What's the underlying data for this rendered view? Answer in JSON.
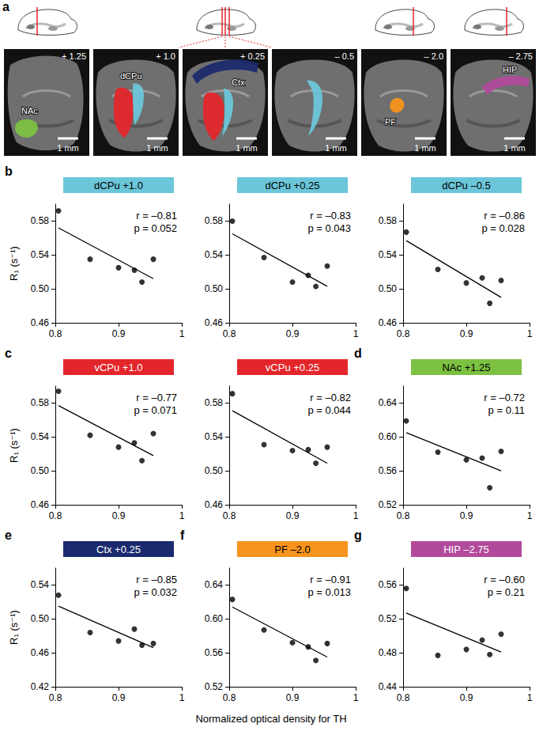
{
  "panel_a": {
    "letter": "a",
    "sections": [
      {
        "coordinate": "+ 1.25",
        "scale_bar": "1 mm",
        "regions": [
          {
            "label": "NAc",
            "color": "#7cc142"
          }
        ]
      },
      {
        "coordinate": "+ 1.0",
        "scale_bar": "1 mm",
        "regions": [
          {
            "color": "#e3262b"
          },
          {
            "label": "dCPu",
            "color": "#6cc6d9"
          }
        ]
      },
      {
        "coordinate": "+ 0.25",
        "scale_bar": "1 mm",
        "regions": [
          {
            "label": "Ctx",
            "color": "#1b2a6e"
          },
          {
            "color": "#e3262b"
          },
          {
            "color": "#6cc6d9"
          }
        ]
      },
      {
        "coordinate": "– 0.5",
        "scale_bar": "1 mm",
        "regions": [
          {
            "color": "#6cc6d9"
          }
        ]
      },
      {
        "coordinate": "– 2.0",
        "scale_bar": "1 mm",
        "regions": [
          {
            "label": "PF",
            "color": "#f7941d"
          }
        ]
      },
      {
        "coordinate": "– 2.75",
        "scale_bar": "1 mm",
        "regions": [
          {
            "label": "HIP",
            "color": "#b24a9c"
          }
        ]
      }
    ]
  },
  "xlabel": "Normalized optical density for TH",
  "chart_data": [
    {
      "type": "scatter",
      "letter": "b",
      "title": "dCPu +1.0",
      "color": "#6cc6d9",
      "ylabel": "R₁ (s⁻¹)",
      "annotations": [
        "r = –0.81",
        "p = 0.052"
      ],
      "xlim": [
        0.8,
        1
      ],
      "xticks": [
        0.8,
        0.9,
        1
      ],
      "ylim": [
        0.46,
        0.6
      ],
      "yticks": [
        {
          "value": 0.46,
          "label": "0.46"
        },
        {
          "value": 0.5,
          "label": "0.50"
        },
        {
          "value": 0.54,
          "label": "0.54"
        },
        {
          "value": 0.58,
          "label": "0.58"
        }
      ],
      "series": [
        {
          "type": "scatter",
          "color": "#000000",
          "x": [
            0.805,
            0.855,
            0.9,
            0.925,
            0.937,
            0.955
          ],
          "values": [
            0.592,
            0.535,
            0.525,
            0.522,
            0.508,
            0.535
          ]
        },
        {
          "type": "line",
          "color": "#000000",
          "x": [
            0.805,
            0.955
          ],
          "values": [
            0.572,
            0.512
          ]
        }
      ]
    },
    {
      "type": "scatter",
      "title": "dCPu +0.25",
      "color": "#6cc6d9",
      "annotations": [
        "r = –0.83",
        "p = 0.043"
      ],
      "xlim": [
        0.8,
        1
      ],
      "xticks": [
        0.8,
        0.9,
        1
      ],
      "ylim": [
        0.46,
        0.6
      ],
      "yticks": [
        {
          "value": 0.46,
          "label": "0.46"
        },
        {
          "value": 0.5,
          "label": "0.50"
        },
        {
          "value": 0.54,
          "label": "0.54"
        },
        {
          "value": 0.58,
          "label": "0.58"
        }
      ],
      "series": [
        {
          "type": "scatter",
          "color": "#000000",
          "x": [
            0.805,
            0.855,
            0.9,
            0.925,
            0.937,
            0.955
          ],
          "values": [
            0.58,
            0.537,
            0.508,
            0.516,
            0.503,
            0.527
          ]
        },
        {
          "type": "line",
          "color": "#000000",
          "x": [
            0.805,
            0.955
          ],
          "values": [
            0.565,
            0.503
          ]
        }
      ]
    },
    {
      "type": "scatter",
      "title": "dCPu –0.5",
      "color": "#6cc6d9",
      "annotations": [
        "r = –0.86",
        "p = 0.028"
      ],
      "xlim": [
        0.8,
        1
      ],
      "xticks": [
        0.8,
        0.9,
        1
      ],
      "ylim": [
        0.46,
        0.6
      ],
      "yticks": [
        {
          "value": 0.46,
          "label": "0.46"
        },
        {
          "value": 0.5,
          "label": "0.50"
        },
        {
          "value": 0.54,
          "label": "0.54"
        },
        {
          "value": 0.58,
          "label": "0.58"
        }
      ],
      "series": [
        {
          "type": "scatter",
          "color": "#000000",
          "x": [
            0.805,
            0.855,
            0.9,
            0.925,
            0.937,
            0.955
          ],
          "values": [
            0.567,
            0.523,
            0.507,
            0.513,
            0.483,
            0.51
          ]
        },
        {
          "type": "line",
          "color": "#000000",
          "x": [
            0.805,
            0.955
          ],
          "values": [
            0.557,
            0.49
          ]
        }
      ]
    },
    {
      "type": "scatter",
      "letter": "c",
      "title": "vCPu +1.0",
      "color": "#e3262b",
      "ylabel": "R₁ (s⁻¹)",
      "annotations": [
        "r = –0.77",
        "p = 0.071"
      ],
      "xlim": [
        0.8,
        1
      ],
      "xticks": [
        0.8,
        0.9,
        1
      ],
      "ylim": [
        0.46,
        0.6
      ],
      "yticks": [
        {
          "value": 0.46,
          "label": "0.46"
        },
        {
          "value": 0.5,
          "label": "0.50"
        },
        {
          "value": 0.54,
          "label": "0.54"
        },
        {
          "value": 0.58,
          "label": "0.58"
        }
      ],
      "series": [
        {
          "type": "scatter",
          "color": "#000000",
          "x": [
            0.805,
            0.855,
            0.9,
            0.925,
            0.937,
            0.955
          ],
          "values": [
            0.594,
            0.542,
            0.528,
            0.533,
            0.512,
            0.544
          ]
        },
        {
          "type": "line",
          "color": "#000000",
          "x": [
            0.805,
            0.955
          ],
          "values": [
            0.577,
            0.518
          ]
        }
      ]
    },
    {
      "type": "scatter",
      "title": "vCPu +0.25",
      "color": "#e3262b",
      "annotations": [
        "r = –0.82",
        "p = 0.044"
      ],
      "xlim": [
        0.8,
        1
      ],
      "xticks": [
        0.8,
        0.9,
        1
      ],
      "ylim": [
        0.46,
        0.6
      ],
      "yticks": [
        {
          "value": 0.46,
          "label": "0.46"
        },
        {
          "value": 0.5,
          "label": "0.50"
        },
        {
          "value": 0.54,
          "label": "0.54"
        },
        {
          "value": 0.58,
          "label": "0.58"
        }
      ],
      "series": [
        {
          "type": "scatter",
          "color": "#000000",
          "x": [
            0.805,
            0.855,
            0.9,
            0.925,
            0.937,
            0.955
          ],
          "values": [
            0.591,
            0.531,
            0.524,
            0.525,
            0.509,
            0.528
          ]
        },
        {
          "type": "line",
          "color": "#000000",
          "x": [
            0.805,
            0.955
          ],
          "values": [
            0.571,
            0.509
          ]
        }
      ]
    },
    {
      "type": "scatter",
      "letter": "d",
      "title": "NAc +1.25",
      "color": "#7cc142",
      "annotations": [
        "r = –0.72",
        "p = 0.11"
      ],
      "xlim": [
        0.8,
        1
      ],
      "xticks": [
        0.8,
        0.9,
        1
      ],
      "ylim": [
        0.52,
        0.66
      ],
      "yticks": [
        {
          "value": 0.52,
          "label": "0.52"
        },
        {
          "value": 0.56,
          "label": "0.56"
        },
        {
          "value": 0.6,
          "label": "0.60"
        },
        {
          "value": 0.64,
          "label": "0.64"
        }
      ],
      "series": [
        {
          "type": "scatter",
          "color": "#000000",
          "x": [
            0.805,
            0.855,
            0.9,
            0.925,
            0.937,
            0.955
          ],
          "values": [
            0.619,
            0.582,
            0.573,
            0.575,
            0.54,
            0.583
          ]
        },
        {
          "type": "line",
          "color": "#000000",
          "x": [
            0.805,
            0.955
          ],
          "values": [
            0.605,
            0.56
          ]
        }
      ]
    },
    {
      "type": "scatter",
      "letter": "e",
      "title": "Ctx +0.25",
      "color": "#1b2a6e",
      "ylabel": "R₁ (s⁻¹)",
      "annotations": [
        "r = –0.85",
        "p = 0.032"
      ],
      "xlim": [
        0.8,
        1
      ],
      "xticks": [
        0.8,
        0.9,
        1
      ],
      "ylim": [
        0.42,
        0.56
      ],
      "yticks": [
        {
          "value": 0.42,
          "label": "0.42"
        },
        {
          "value": 0.46,
          "label": "0.46"
        },
        {
          "value": 0.5,
          "label": "0.50"
        },
        {
          "value": 0.54,
          "label": "0.54"
        }
      ],
      "series": [
        {
          "type": "scatter",
          "color": "#000000",
          "x": [
            0.805,
            0.855,
            0.9,
            0.925,
            0.937,
            0.955
          ],
          "values": [
            0.528,
            0.484,
            0.474,
            0.488,
            0.469,
            0.471
          ]
        },
        {
          "type": "line",
          "color": "#000000",
          "x": [
            0.805,
            0.955
          ],
          "values": [
            0.515,
            0.466
          ]
        }
      ]
    },
    {
      "type": "scatter",
      "letter": "f",
      "title": "PF –2.0",
      "color": "#f7941d",
      "annotations": [
        "r = –0.91",
        "p = 0.013"
      ],
      "xlim": [
        0.8,
        1
      ],
      "xticks": [
        0.8,
        0.9,
        1
      ],
      "ylim": [
        0.52,
        0.66
      ],
      "yticks": [
        {
          "value": 0.52,
          "label": "0.52"
        },
        {
          "value": 0.56,
          "label": "0.56"
        },
        {
          "value": 0.6,
          "label": "0.60"
        },
        {
          "value": 0.64,
          "label": "0.64"
        }
      ],
      "series": [
        {
          "type": "scatter",
          "color": "#000000",
          "x": [
            0.805,
            0.855,
            0.9,
            0.925,
            0.937,
            0.955
          ],
          "values": [
            0.623,
            0.587,
            0.572,
            0.567,
            0.551,
            0.571
          ]
        },
        {
          "type": "line",
          "color": "#000000",
          "x": [
            0.805,
            0.955
          ],
          "values": [
            0.614,
            0.555
          ]
        }
      ]
    },
    {
      "type": "scatter",
      "letter": "g",
      "title": "HIP –2.75",
      "color": "#b24a9c",
      "annotations": [
        "r = –0.60",
        "p = 0.21"
      ],
      "xlim": [
        0.8,
        1
      ],
      "xticks": [
        0.8,
        0.9,
        1
      ],
      "ylim": [
        0.44,
        0.58
      ],
      "yticks": [
        {
          "value": 0.44,
          "label": "0.44"
        },
        {
          "value": 0.48,
          "label": "0.48"
        },
        {
          "value": 0.52,
          "label": "0.52"
        },
        {
          "value": 0.56,
          "label": "0.56"
        }
      ],
      "series": [
        {
          "type": "scatter",
          "color": "#000000",
          "x": [
            0.805,
            0.855,
            0.9,
            0.925,
            0.937,
            0.955
          ],
          "values": [
            0.556,
            0.477,
            0.484,
            0.495,
            0.478,
            0.502
          ]
        },
        {
          "type": "line",
          "color": "#000000",
          "x": [
            0.805,
            0.955
          ],
          "values": [
            0.527,
            0.481
          ]
        }
      ]
    }
  ]
}
